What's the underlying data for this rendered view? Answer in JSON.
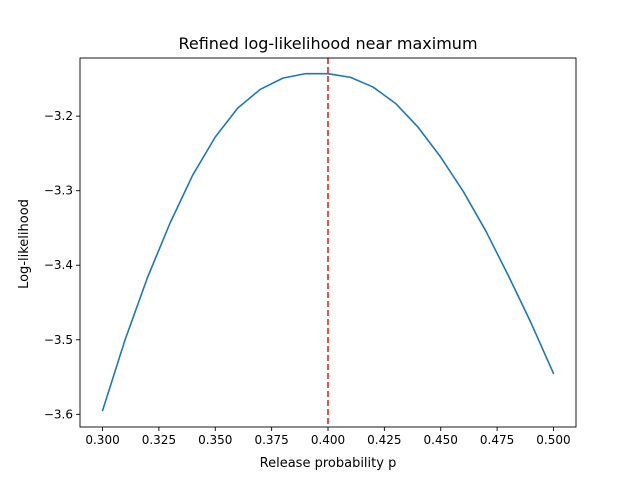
{
  "chart_data": {
    "type": "line",
    "title": "Refined log-likelihood near maximum",
    "xlabel": "Release probability p",
    "ylabel": "Log-likelihood",
    "xlim": [
      0.29,
      0.51
    ],
    "ylim": [
      -3.617,
      -3.122
    ],
    "grid": false,
    "x_ticks": [
      0.3,
      0.325,
      0.35,
      0.375,
      0.4,
      0.425,
      0.45,
      0.475,
      0.5
    ],
    "x_tick_labels": [
      "0.300",
      "0.325",
      "0.350",
      "0.375",
      "0.400",
      "0.425",
      "0.450",
      "0.475",
      "0.500"
    ],
    "y_ticks": [
      -3.6,
      -3.5,
      -3.4,
      -3.3,
      -3.2
    ],
    "y_tick_labels": [
      "−3.6",
      "−3.5",
      "−3.4",
      "−3.3",
      "−3.2"
    ],
    "series": [
      {
        "color": "#1f77b4",
        "style": "solid",
        "x": [
          0.3,
          0.31,
          0.32,
          0.33,
          0.34,
          0.35,
          0.36,
          0.37,
          0.38,
          0.39,
          0.4,
          0.41,
          0.42,
          0.43,
          0.44,
          0.45,
          0.46,
          0.47,
          0.48,
          0.49,
          0.5
        ],
        "y": [
          -3.595,
          -3.5,
          -3.416,
          -3.343,
          -3.279,
          -3.228,
          -3.189,
          -3.164,
          -3.149,
          -3.143,
          -3.143,
          -3.148,
          -3.161,
          -3.183,
          -3.215,
          -3.255,
          -3.301,
          -3.354,
          -3.414,
          -3.477,
          -3.545
        ]
      }
    ],
    "annotations": [
      {
        "type": "vline",
        "x": 0.4,
        "color": "#d62728",
        "style": "dashed"
      }
    ]
  }
}
